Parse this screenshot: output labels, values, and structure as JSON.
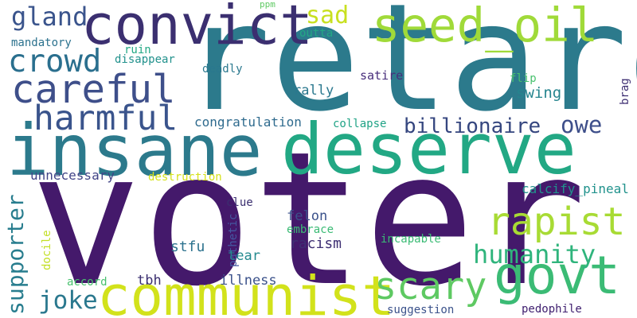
{
  "words": [
    {
      "key": "voter",
      "text": "voter",
      "color": "#44196b"
    },
    {
      "key": "retard",
      "text": "retard",
      "color": "#2c7a8c"
    },
    {
      "key": "insane",
      "text": "insane",
      "color": "#2c7a8c"
    },
    {
      "key": "deserve",
      "text": "deserve",
      "color": "#22a884"
    },
    {
      "key": "communist",
      "text": "communist",
      "color": "#d2e21b"
    },
    {
      "key": "convict",
      "text": "convict",
      "color": "#3b2f70"
    },
    {
      "key": "seed_oil",
      "text": "seed_oil",
      "color": "#a0da39"
    },
    {
      "key": "govt",
      "text": "govt",
      "color": "#3bbb75"
    },
    {
      "key": "careful",
      "text": "careful",
      "color": "#3e4f8a"
    },
    {
      "key": "harmful",
      "text": "harmful",
      "color": "#3a548c"
    },
    {
      "key": "crowd",
      "text": "crowd",
      "color": "#2a6f8e"
    },
    {
      "key": "rapist",
      "text": "rapist",
      "color": "#a8db34"
    },
    {
      "key": "scary",
      "text": "scary",
      "color": "#5ec962"
    },
    {
      "key": "humanity",
      "text": "humanity",
      "color": "#2fb47c"
    },
    {
      "key": "billionaire",
      "text": "billionaire",
      "color": "#35467f"
    },
    {
      "key": "owe",
      "text": "owe",
      "color": "#3e4f8a"
    },
    {
      "key": "gland",
      "text": "gland",
      "color": "#3a548c"
    },
    {
      "key": "sad",
      "text": "sad",
      "color": "#c8e020"
    },
    {
      "key": "supporter",
      "text": "supporter",
      "color": "#287d8e"
    },
    {
      "key": "joke",
      "text": "joke",
      "color": "#2a788e"
    },
    {
      "key": "congratulation",
      "text": "congratulation",
      "color": "#2f6b8e"
    },
    {
      "key": "swing",
      "text": "swing",
      "color": "#25848e"
    },
    {
      "key": "unnecessary",
      "text": "unnecessary",
      "color": "#414487"
    },
    {
      "key": "calcify_pineal",
      "text": "calcify_pineal",
      "color": "#20928c"
    },
    {
      "key": "stfu",
      "text": "stfu",
      "color": "#2c728e"
    },
    {
      "key": "racism",
      "text": "racism",
      "color": "#3e2f73"
    },
    {
      "key": "felon",
      "text": "felon",
      "color": "#3b528b"
    },
    {
      "key": "illness",
      "text": "illness",
      "color": "#3b528b"
    },
    {
      "key": "tbh",
      "text": "tbh",
      "color": "#3b2f70"
    },
    {
      "key": "tear",
      "text": "tear",
      "color": "#23898e"
    },
    {
      "key": "pathetic",
      "text": "pathetic",
      "color": "#4458a1"
    },
    {
      "key": "satire",
      "text": "satire",
      "color": "#472d7b"
    },
    {
      "key": "rally",
      "text": "rally",
      "color": "#2a788e"
    },
    {
      "key": "flip",
      "text": "flip",
      "color": "#48c16e"
    },
    {
      "key": "brag",
      "text": "brag",
      "color": "#3e2f73"
    },
    {
      "key": "collapse",
      "text": "collapse",
      "color": "#20a386"
    },
    {
      "key": "destruction",
      "text": "destruction",
      "color": "#d5e21a"
    },
    {
      "key": "clue",
      "text": "clue",
      "color": "#3b2f70"
    },
    {
      "key": "embrace",
      "text": "embrace",
      "color": "#3bbb75"
    },
    {
      "key": "incapable",
      "text": "incapable",
      "color": "#3bbb75"
    },
    {
      "key": "docile",
      "text": "docile",
      "color": "#c2df23"
    },
    {
      "key": "accord",
      "text": "accord",
      "color": "#48c16e"
    },
    {
      "key": "suggestion",
      "text": "suggestion",
      "color": "#3b528b"
    },
    {
      "key": "pedophile",
      "text": "pedophile",
      "color": "#3f1f6f"
    },
    {
      "key": "mandatory",
      "text": "mandatory",
      "color": "#2c728e"
    },
    {
      "key": "ruin",
      "text": "ruin",
      "color": "#22a884"
    },
    {
      "key": "disappear",
      "text": "disappear",
      "color": "#21918c"
    },
    {
      "key": "deadly",
      "text": "deadly",
      "color": "#2a788e"
    },
    {
      "key": "ppm",
      "text": "ppm",
      "color": "#5ec962"
    },
    {
      "key": "outta",
      "text": "outta",
      "color": "#22a884"
    }
  ]
}
